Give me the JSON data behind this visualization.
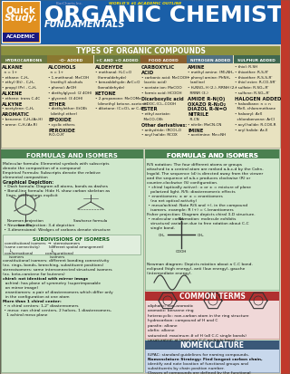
{
  "title": "ORGANIC CHEMISTRY",
  "subtitle": "FUNDAMENTALS",
  "top_bar_color": "#1a5fa8",
  "header_small": "BarCharts Inc.",
  "header_top": "WORLD'S #1 ACADEMIC OUTLINE",
  "section1_title": "TYPES OF ORGANIC COMPOUNDS",
  "section1_bg": "#e8e2c0",
  "section1_header_bg": "#8b9040",
  "section2_title": "FORMULAS AND ISOMERS",
  "section2_bg": "#d0e8cc",
  "section2_header_bg": "#4a8050",
  "section3_title": "FORMULAS AND ISOMERS",
  "section3_bg": "#d0e8cc",
  "section3_header_bg": "#4a8050",
  "section4_title": "COMMON TERMS",
  "section4_bg": "#f0d8d8",
  "section4_header_bg": "#b03030",
  "section5_title": "NOMENCLATURE",
  "section5_bg": "#c8d8ec",
  "section5_header_bg": "#3a5878",
  "right_tab_color": "#c0392b",
  "bg_color": "#d8d4c0",
  "col_headers_row1": [
    "HYDROCARBONS",
    "-O- ADDED",
    "+C AND +O ADDED",
    "FOOD ADDED",
    "NITROGEN ADDED",
    "SULPHUR ADDED"
  ],
  "col_header_colors": [
    "#6a7840",
    "#8a7830",
    "#6a7840",
    "#8a6030",
    "#507080",
    "#406850"
  ]
}
